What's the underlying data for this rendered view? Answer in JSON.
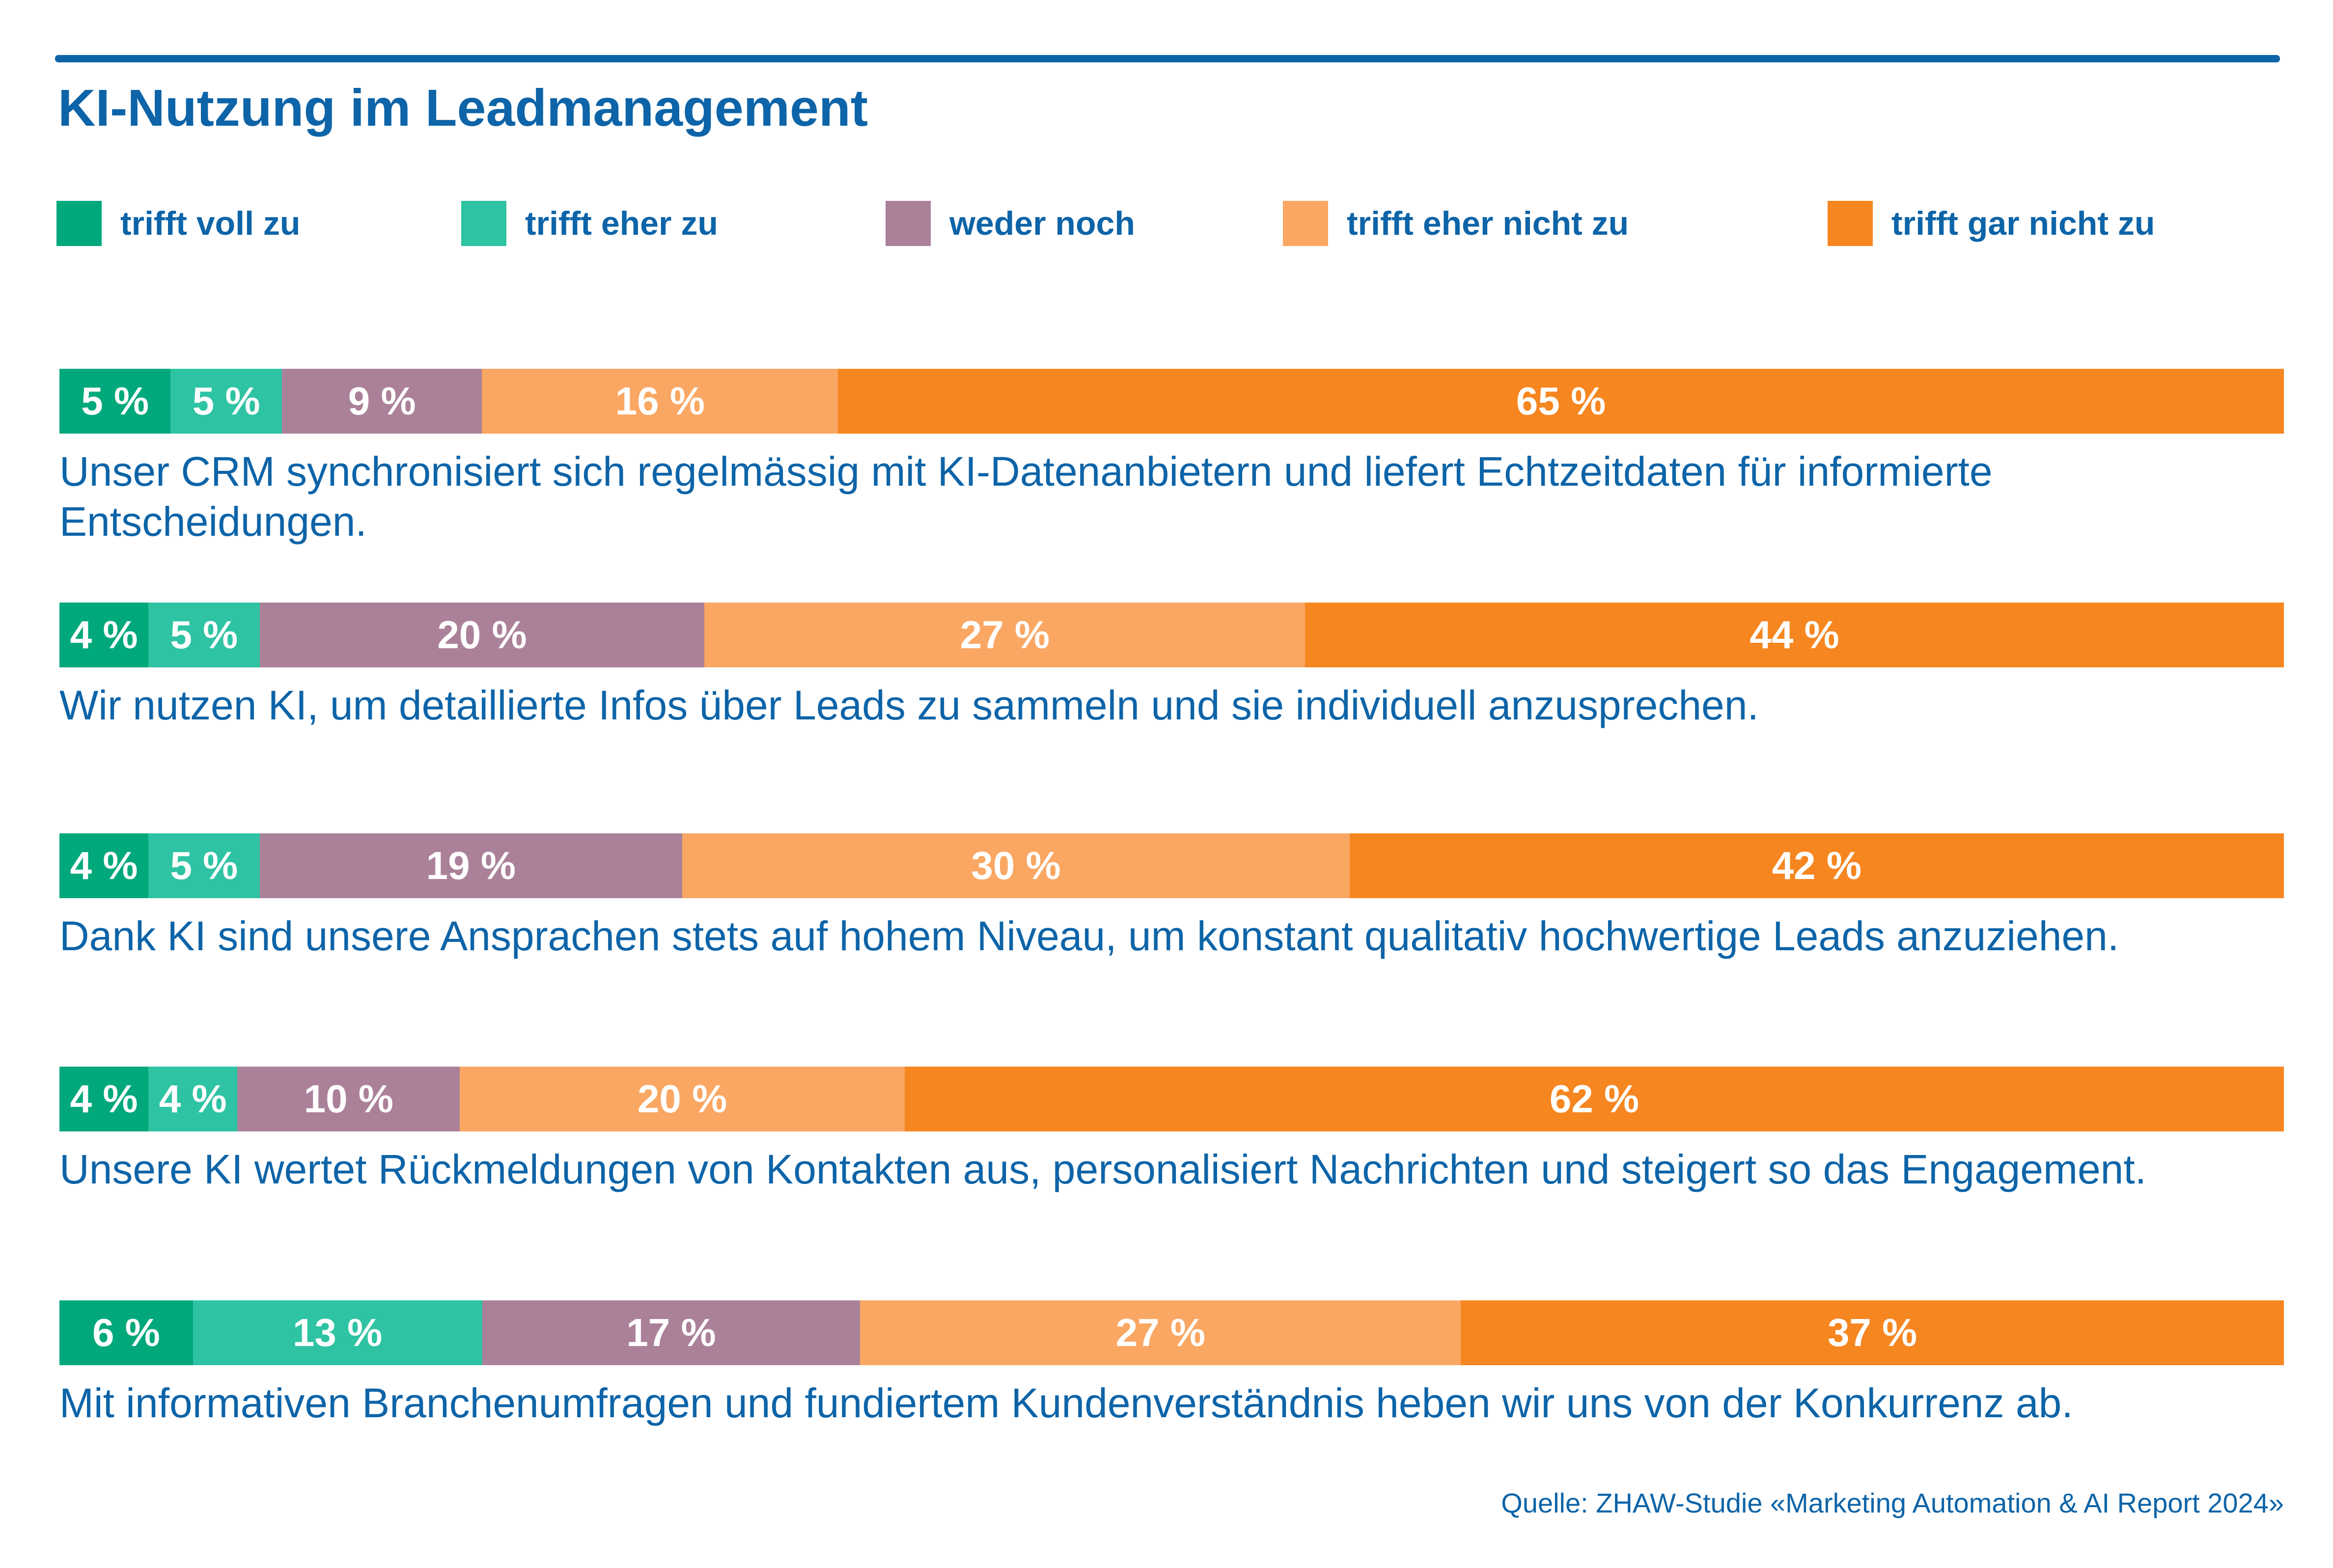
{
  "page": {
    "title": "KI-Nutzung im Leadmanagement",
    "source": "Quelle: ZHAW-Studie «Marketing Automation & AI Report 2024»"
  },
  "colors": {
    "accent_blue": "#0D64A8",
    "bar_label_text": "#FFFFFF",
    "background": "#FFFFFF"
  },
  "legend": [
    {
      "label": "trifft voll zu",
      "color": "#00A87C"
    },
    {
      "label": "trifft eher zu",
      "color": "#2EC3A3"
    },
    {
      "label": "weder noch",
      "color": "#AB8199"
    },
    {
      "label": "trifft eher nicht zu",
      "color": "#FAA763"
    },
    {
      "label": "trifft gar nicht zu",
      "color": "#F68620"
    }
  ],
  "rows": [
    {
      "caption": "Unser CRM synchronisiert sich regelmässig mit KI-Datenanbietern und liefert Echtzeitdaten für informierte Entscheidungen.",
      "segments": [
        {
          "label": "5 %",
          "value": 5
        },
        {
          "label": "5 %",
          "value": 5
        },
        {
          "label": "9 %",
          "value": 9
        },
        {
          "label": "16 %",
          "value": 16
        },
        {
          "label": "65 %",
          "value": 65
        }
      ]
    },
    {
      "caption": "Wir nutzen KI, um detaillierte Infos über Leads zu sammeln und sie individuell anzusprechen.",
      "segments": [
        {
          "label": "4 %",
          "value": 4
        },
        {
          "label": "5 %",
          "value": 5
        },
        {
          "label": "20 %",
          "value": 20
        },
        {
          "label": "27 %",
          "value": 27
        },
        {
          "label": "44 %",
          "value": 44
        }
      ]
    },
    {
      "caption": "Dank KI sind unsere Ansprachen stets auf hohem Niveau, um konstant qualitativ hochwertige Leads anzuziehen.",
      "segments": [
        {
          "label": "4 %",
          "value": 4
        },
        {
          "label": "5 %",
          "value": 5
        },
        {
          "label": "19 %",
          "value": 19
        },
        {
          "label": "30 %",
          "value": 30
        },
        {
          "label": "42 %",
          "value": 42
        }
      ]
    },
    {
      "caption": "Unsere KI wertet Rückmeldungen von Kontakten aus, personalisiert Nachrichten und steigert so das Engagement.",
      "segments": [
        {
          "label": "4 %",
          "value": 4
        },
        {
          "label": "4 %",
          "value": 4
        },
        {
          "label": "10 %",
          "value": 10
        },
        {
          "label": "20 %",
          "value": 20
        },
        {
          "label": "62 %",
          "value": 62
        }
      ]
    },
    {
      "caption": "Mit informativen Branchenumfragen und fundiertem Kundenverständnis heben wir uns von der Konkurrenz ab.",
      "segments": [
        {
          "label": "6 %",
          "value": 6
        },
        {
          "label": "13 %",
          "value": 13
        },
        {
          "label": "17 %",
          "value": 17
        },
        {
          "label": "27 %",
          "value": 27
        },
        {
          "label": "37 %",
          "value": 37
        }
      ]
    }
  ],
  "chart_data": {
    "type": "bar",
    "stacked": true,
    "orientation": "horizontal",
    "unit": "percent",
    "title": "KI-Nutzung im Leadmanagement",
    "legend_position": "top",
    "xlim": [
      0,
      100
    ],
    "grid": false,
    "categories": [
      "Unser CRM synchronisiert sich regelmässig mit KI-Datenanbietern und liefert Echtzeitdaten für informierte Entscheidungen.",
      "Wir nutzen KI, um detaillierte Infos über Leads zu sammeln und sie individuell anzusprechen.",
      "Dank KI sind unsere Ansprachen stets auf hohem Niveau, um konstant qualitativ hochwertige Leads anzuziehen.",
      "Unsere KI wertet Rückmeldungen von Kontakten aus, personalisiert Nachrichten und steigert so das Engagement.",
      "Mit informativen Branchenumfragen und fundiertem Kundenverständnis heben wir uns von der Konkurrenz ab."
    ],
    "series": [
      {
        "name": "trifft voll zu",
        "values": [
          5,
          4,
          4,
          4,
          6
        ]
      },
      {
        "name": "trifft eher zu",
        "values": [
          5,
          5,
          5,
          4,
          13
        ]
      },
      {
        "name": "weder noch",
        "values": [
          9,
          20,
          19,
          10,
          17
        ]
      },
      {
        "name": "trifft eher nicht zu",
        "values": [
          16,
          27,
          30,
          20,
          27
        ]
      },
      {
        "name": "trifft gar nicht zu",
        "values": [
          65,
          44,
          42,
          62,
          37
        ]
      }
    ],
    "source": "Quelle: ZHAW-Studie «Marketing Automation & AI Report 2024»"
  }
}
